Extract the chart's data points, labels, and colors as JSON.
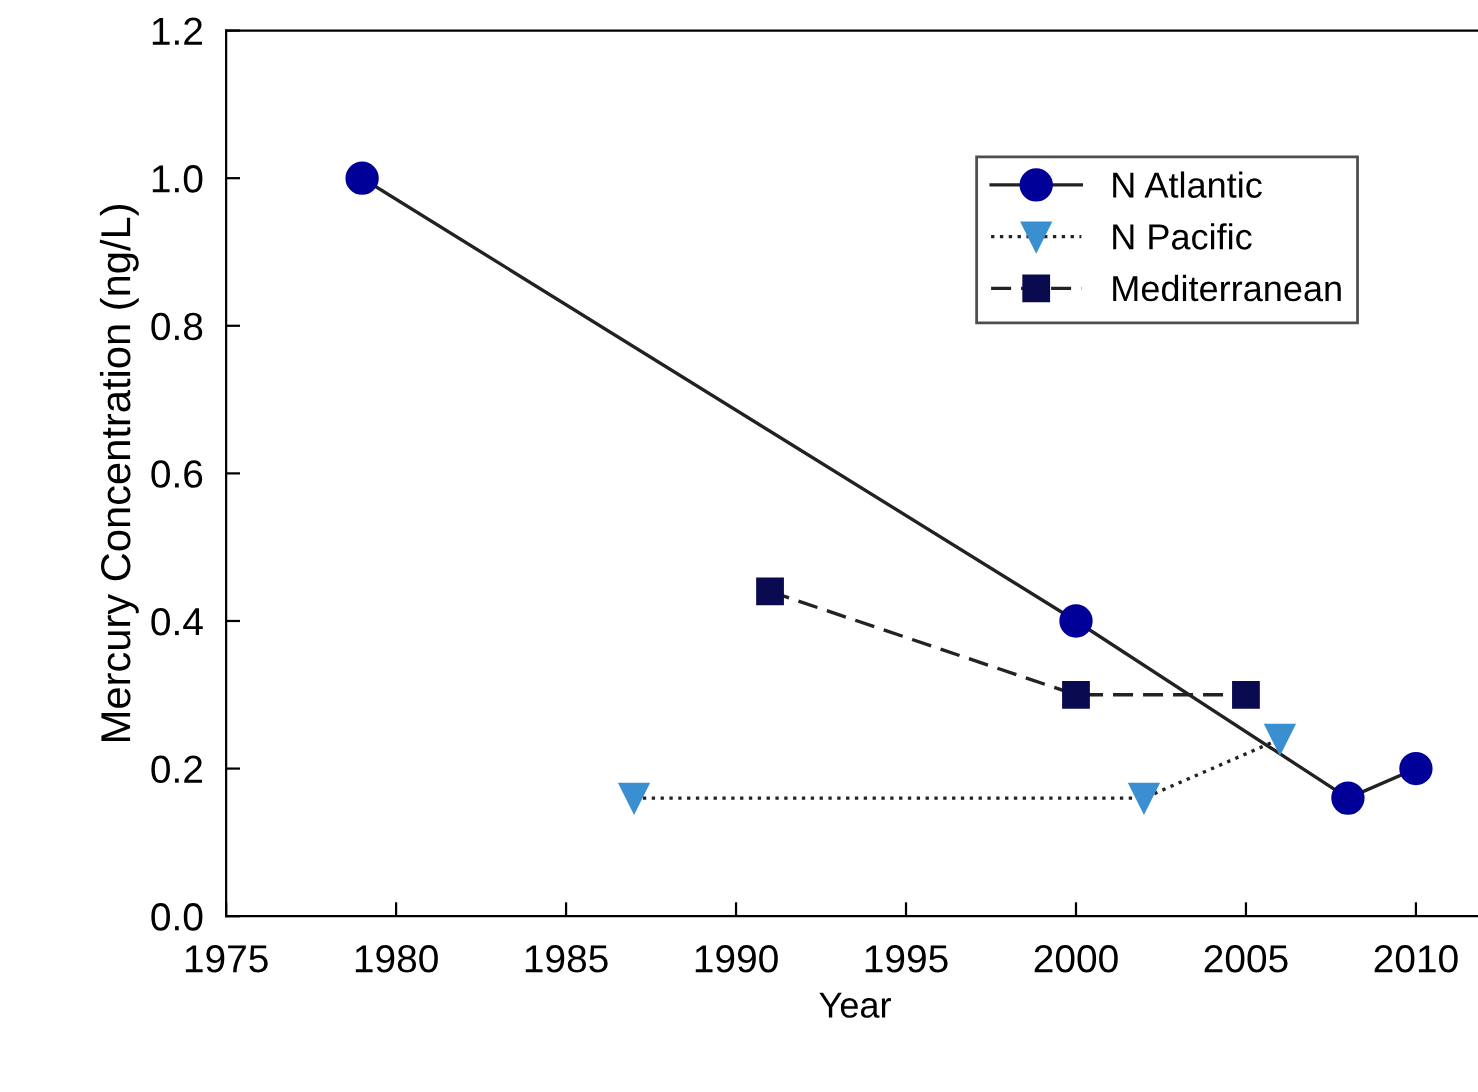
{
  "chart_data": {
    "type": "line",
    "xlabel": "Year",
    "ylabel": "Mercury Concentration (ng/L)",
    "xlim": [
      1975,
      2012
    ],
    "xticks": [
      1975,
      1980,
      1985,
      1990,
      1995,
      2000,
      2005,
      2010
    ],
    "ylim": [
      0,
      1.2
    ],
    "yticks": [
      {
        "value": 0,
        "label": "0.0"
      },
      {
        "value": 0.2,
        "label": "0.2"
      },
      {
        "value": 0.4,
        "label": "0.4"
      },
      {
        "value": 0.6,
        "label": "0.6"
      },
      {
        "value": 0.8,
        "label": "0.8"
      },
      {
        "value": 1.0,
        "label": "1.0"
      },
      {
        "value": 1.2,
        "label": "1.2"
      }
    ],
    "grid": false,
    "legend": "top right",
    "series": [
      {
        "name": "N Atlantic",
        "color": "#000099",
        "marker": "circle",
        "line_style": "solid",
        "x": [
          1979,
          2000,
          2008,
          2010
        ],
        "values": [
          1.0,
          0.4,
          0.16,
          0.2
        ]
      },
      {
        "name": "N Pacific",
        "color": "#3a8fd0",
        "marker": "triangle",
        "line_style": "dotted",
        "x": [
          1987,
          2002,
          2006
        ],
        "values": [
          0.16,
          0.16,
          0.24
        ]
      },
      {
        "name": "Mediterranean",
        "color": "#0a0a50",
        "marker": "square",
        "line_style": "dashed",
        "x": [
          1991,
          2000,
          2005
        ],
        "values": [
          0.44,
          0.3,
          0.3
        ]
      }
    ]
  }
}
